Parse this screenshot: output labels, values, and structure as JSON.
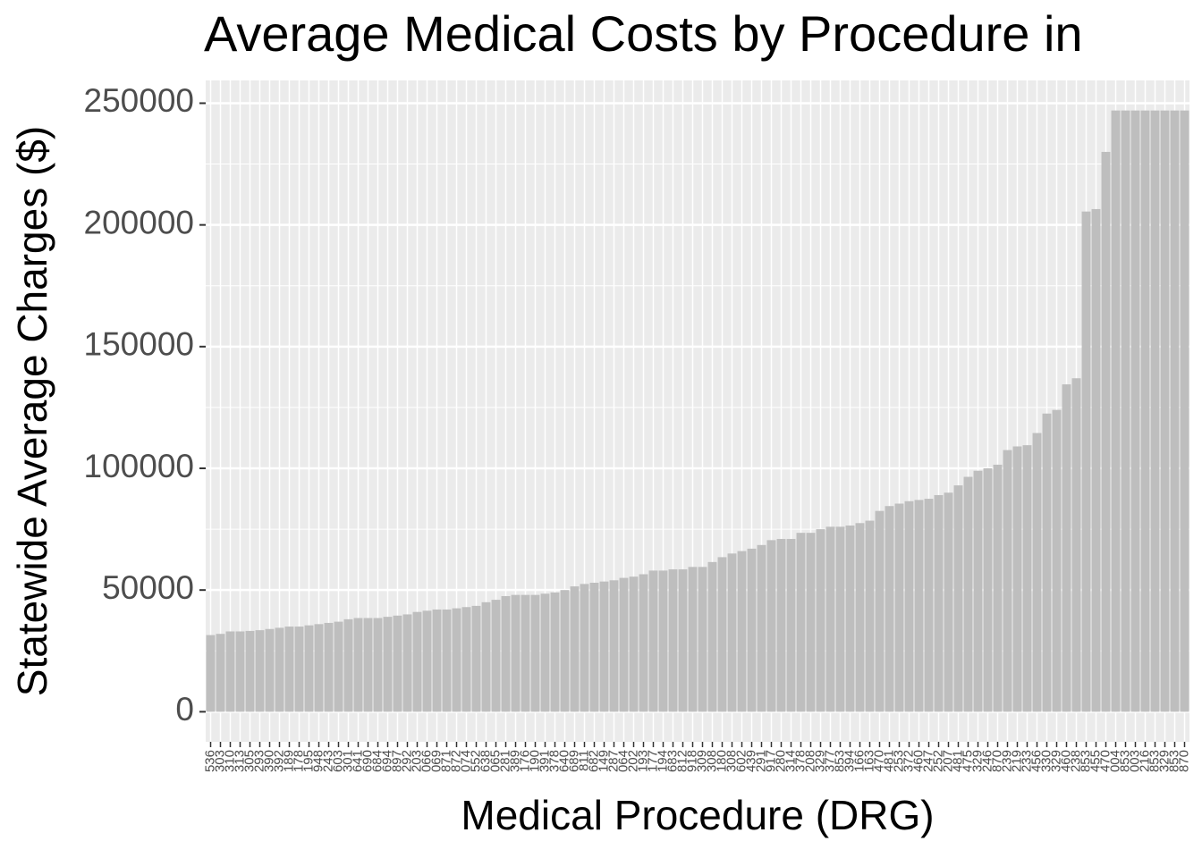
{
  "chart_data": {
    "type": "bar",
    "title": "Average Medical Costs by Procedure in",
    "x_label": "Medical Procedure (DRG)",
    "y_label": "Statewide Average Charges ($)",
    "color": "#bebebe",
    "grid": true,
    "ylim": [
      -12350,
      259350
    ],
    "yticks": [
      0,
      50000,
      100000,
      150000,
      200000,
      250000
    ],
    "categories": [
      "536",
      "303",
      "310",
      "313",
      "305",
      "293",
      "390",
      "392",
      "189",
      "178",
      "195",
      "948",
      "243",
      "603",
      "301",
      "641",
      "690",
      "684",
      "694",
      "897",
      "292",
      "203",
      "066",
      "069",
      "871",
      "872",
      "074",
      "552",
      "638",
      "065",
      "281",
      "389",
      "176",
      "190",
      "391",
      "378",
      "640",
      "689",
      "811",
      "682",
      "149",
      "287",
      "064",
      "202",
      "193",
      "177",
      "194",
      "683",
      "812",
      "918",
      "309",
      "308",
      "180",
      "308",
      "602",
      "439",
      "291",
      "917",
      "280",
      "314",
      "378",
      "208",
      "329",
      "377",
      "853",
      "394",
      "166",
      "163",
      "470",
      "481",
      "253",
      "372",
      "460",
      "247",
      "252",
      "207",
      "481",
      "475",
      "329",
      "246",
      "870",
      "239",
      "219",
      "233",
      "456",
      "330",
      "329",
      "460",
      "238",
      "853",
      "455",
      "470",
      "004",
      "853",
      "003",
      "216",
      "853",
      "329",
      "853",
      "870"
    ],
    "values": [
      31500,
      32000,
      33000,
      33000,
      33200,
      33500,
      34000,
      34500,
      35000,
      35000,
      35500,
      36000,
      36500,
      37000,
      38000,
      38500,
      38500,
      38500,
      39000,
      39500,
      40000,
      41000,
      41500,
      42000,
      42000,
      42500,
      43000,
      43500,
      45000,
      46000,
      47500,
      48000,
      48000,
      48000,
      48500,
      49000,
      50000,
      51500,
      52500,
      53000,
      53500,
      54000,
      55000,
      55500,
      56500,
      58000,
      58000,
      58500,
      58500,
      59500,
      59500,
      61500,
      63500,
      65000,
      66000,
      67000,
      68500,
      70500,
      71000,
      71000,
      73500,
      73500,
      75000,
      76000,
      76000,
      76500,
      77500,
      78500,
      82500,
      84500,
      85500,
      86500,
      87000,
      87500,
      89000,
      90000,
      93000,
      96500,
      99000,
      100000,
      101500,
      107500,
      109000,
      109500,
      114500,
      122500,
      124000,
      134500,
      137000,
      205500,
      206500,
      230000,
      247000,
      247000,
      247000,
      247000,
      247000,
      247000,
      247000,
      247000
    ]
  }
}
